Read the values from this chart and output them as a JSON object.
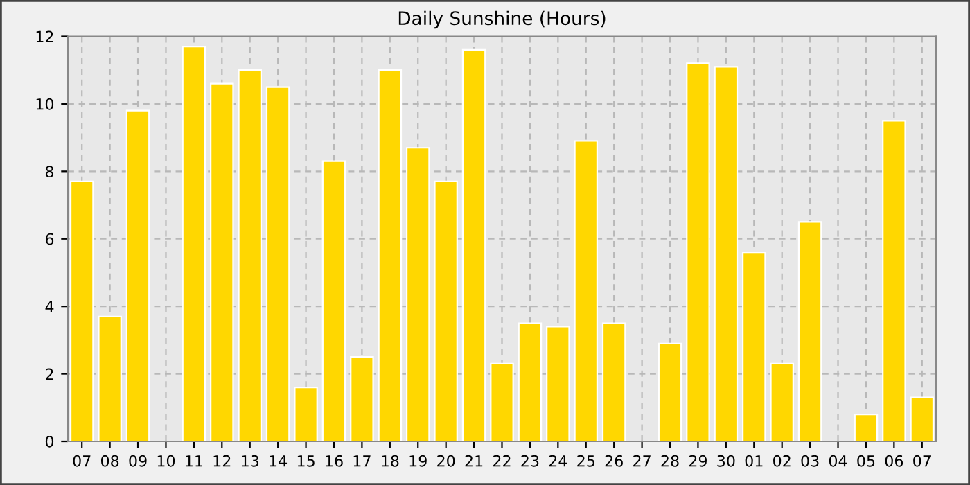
{
  "chart_data": {
    "type": "bar",
    "title": "Daily Sunshine (Hours)",
    "categories": [
      "07",
      "08",
      "09",
      "10",
      "11",
      "12",
      "13",
      "14",
      "15",
      "16",
      "17",
      "18",
      "19",
      "20",
      "21",
      "22",
      "23",
      "24",
      "25",
      "26",
      "27",
      "28",
      "29",
      "30",
      "01",
      "02",
      "03",
      "04",
      "05",
      "06",
      "07"
    ],
    "values": [
      7.7,
      3.7,
      9.8,
      0,
      11.7,
      10.6,
      11.0,
      10.5,
      1.6,
      8.3,
      2.5,
      11.0,
      8.7,
      7.7,
      11.6,
      2.3,
      3.5,
      3.4,
      8.9,
      3.5,
      0,
      2.9,
      11.2,
      11.1,
      5.6,
      2.3,
      6.5,
      0,
      0.8,
      9.5,
      1.3
    ],
    "color": "#ffd700",
    "ylim": [
      0,
      12
    ],
    "yticks": [
      0,
      2,
      4,
      6,
      8,
      10,
      12
    ],
    "grid": true
  }
}
